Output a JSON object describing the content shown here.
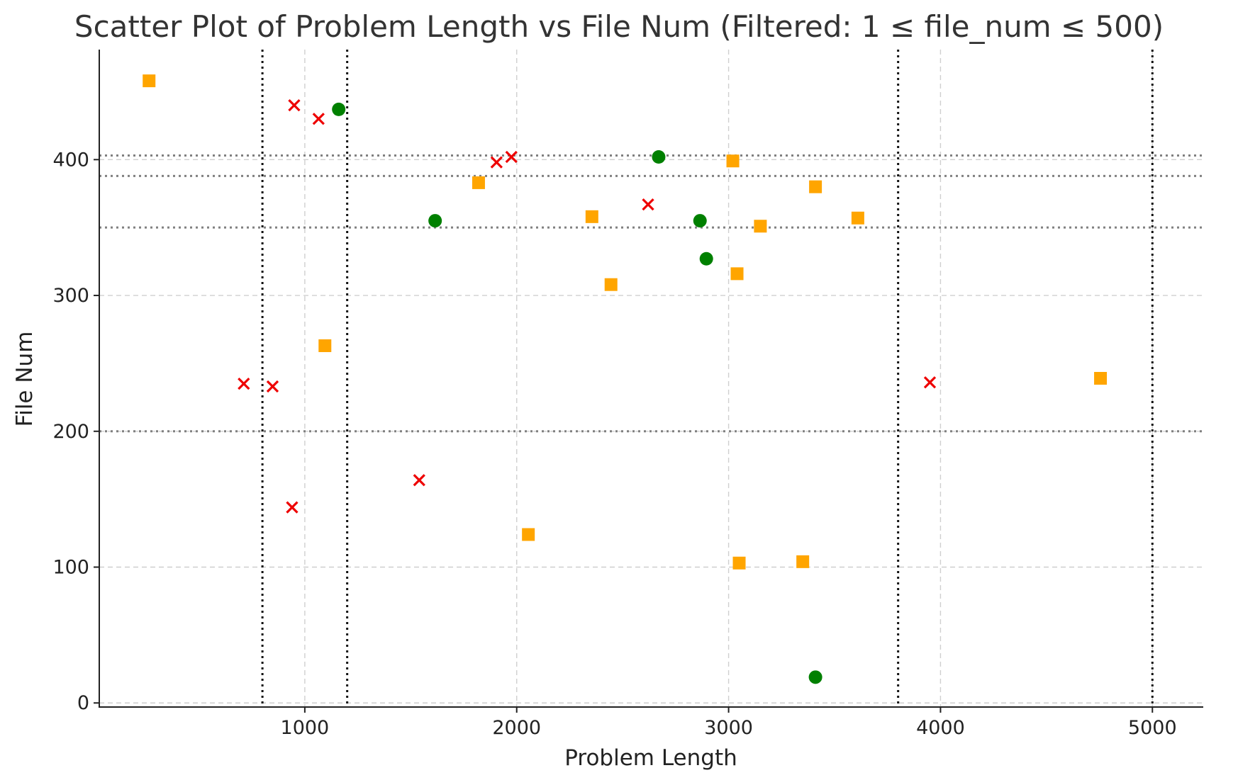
{
  "chart_data": {
    "type": "scatter",
    "title": "Scatter Plot of Problem Length vs File Num (Filtered: 1 ≤ file_num ≤ 500)",
    "xlabel": "Problem Length",
    "ylabel": "File Num",
    "xlim": [
      30,
      5240
    ],
    "ylim": [
      -3,
      481
    ],
    "x_ticks": [
      1000,
      2000,
      3000,
      4000,
      5000
    ],
    "y_ticks": [
      0,
      100,
      200,
      300,
      400
    ],
    "grid": true,
    "colors": {
      "square": "#FFA500",
      "cross": "#EE0000",
      "circle": "#008000"
    },
    "series": [
      {
        "marker": "square",
        "color": "#FFA500",
        "points": [
          [
            265,
            458
          ],
          [
            1095,
            263
          ],
          [
            1820,
            383
          ],
          [
            2055,
            124
          ],
          [
            2355,
            358
          ],
          [
            2445,
            308
          ],
          [
            3020,
            399
          ],
          [
            3040,
            316
          ],
          [
            3050,
            103
          ],
          [
            3150,
            351
          ],
          [
            3350,
            104
          ],
          [
            3410,
            380
          ],
          [
            3610,
            357
          ],
          [
            4755,
            239
          ]
        ]
      },
      {
        "marker": "cross",
        "color": "#EE0000",
        "points": [
          [
            712,
            235
          ],
          [
            848,
            233
          ],
          [
            940,
            144
          ],
          [
            950,
            440
          ],
          [
            1065,
            430
          ],
          [
            1540,
            164
          ],
          [
            1905,
            398
          ],
          [
            1975,
            402
          ],
          [
            2620,
            367
          ],
          [
            3950,
            236
          ]
        ]
      },
      {
        "marker": "circle",
        "color": "#008000",
        "points": [
          [
            1160,
            437
          ],
          [
            1615,
            355
          ],
          [
            2670,
            402
          ],
          [
            2865,
            355
          ],
          [
            2895,
            327
          ],
          [
            3410,
            19
          ]
        ]
      }
    ],
    "reference_lines": {
      "horizontal": [
        403,
        388,
        350,
        200
      ],
      "vertical": [
        800,
        1200,
        3800,
        5000
      ]
    }
  }
}
